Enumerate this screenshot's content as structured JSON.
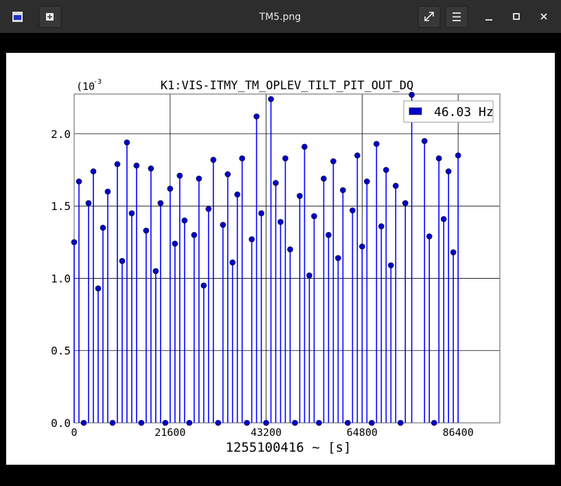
{
  "window": {
    "title": "TM5.png"
  },
  "chart_data": {
    "type": "stem",
    "title": "K1:VIS-ITMY_TM_OPLEV_TILT_PIT_OUT_DQ",
    "xlabel": "1255100416 ~ [s]",
    "scale_prefix": "(10",
    "scale_exponent": "-3",
    "x": [
      0,
      1080,
      2160,
      3240,
      4320,
      5400,
      6480,
      7560,
      8640,
      9720,
      10800,
      11880,
      12960,
      14040,
      15120,
      16200,
      17280,
      18360,
      19440,
      20520,
      21600,
      22680,
      23760,
      24840,
      25920,
      27000,
      28080,
      29160,
      30240,
      31320,
      32400,
      33480,
      34560,
      35640,
      36720,
      37800,
      38880,
      39960,
      41040,
      42120,
      43200,
      44280,
      45360,
      46440,
      47520,
      48600,
      49680,
      50760,
      51840,
      52920,
      54000,
      55080,
      56160,
      57240,
      58320,
      59400,
      60480,
      61560,
      62640,
      63720,
      64800,
      65880,
      66960,
      68040,
      69120,
      70200,
      71280,
      72360,
      73440,
      74520,
      75960,
      78840,
      79920,
      81000,
      82080,
      83160,
      84240,
      85320,
      86400
    ],
    "series": [
      {
        "name": "46.03 Hz",
        "color": "#0000ff",
        "marker_color": "#0000cc",
        "values": [
          1.25,
          1.67,
          0.0,
          1.52,
          1.74,
          0.93,
          1.35,
          1.6,
          0.0,
          1.79,
          1.12,
          1.94,
          1.45,
          1.78,
          0.0,
          1.33,
          1.76,
          1.05,
          1.52,
          0.0,
          1.62,
          1.24,
          1.71,
          1.4,
          0.0,
          1.3,
          1.69,
          0.95,
          1.48,
          1.82,
          0.0,
          1.37,
          1.72,
          1.11,
          1.58,
          1.83,
          0.0,
          1.27,
          2.12,
          1.45,
          0.0,
          2.24,
          1.66,
          1.39,
          1.83,
          1.2,
          0.0,
          1.57,
          1.91,
          1.02,
          1.43,
          0.0,
          1.69,
          1.3,
          1.81,
          1.14,
          1.61,
          0.0,
          1.47,
          1.85,
          1.22,
          1.67,
          0.0,
          1.93,
          1.36,
          1.75,
          1.09,
          1.64,
          0.0,
          1.52,
          2.27,
          1.95,
          1.29,
          0.0,
          1.83,
          1.41,
          1.74,
          1.18,
          1.85
        ]
      }
    ],
    "xlim": [
      0,
      95800
    ],
    "ylim": [
      0,
      2.275
    ],
    "xticks": [
      0,
      21600,
      43200,
      64800,
      86400
    ],
    "yticks": [
      {
        "value": 0,
        "label": "0.0"
      },
      0.5,
      {
        "value": 1,
        "label": "1.0"
      },
      1.5,
      {
        "value": 2,
        "label": "2.0"
      }
    ],
    "grid": true,
    "legend": "upper right"
  }
}
